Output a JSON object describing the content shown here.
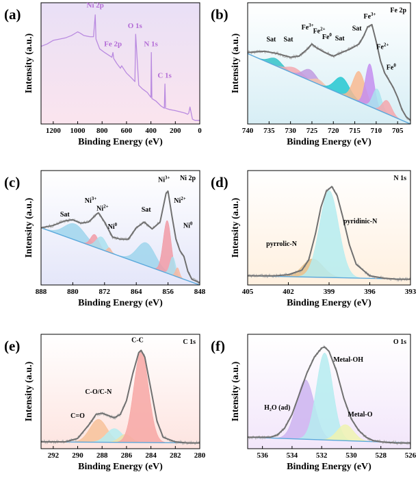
{
  "chart_data": [
    {
      "id": "a",
      "label": "(a)",
      "type": "line",
      "title": "",
      "xlabel": "Binding Energy (eV)",
      "ylabel": "Intensity (a.u.)",
      "xlim": [
        1300,
        0
      ],
      "xticks": [
        1200,
        1000,
        800,
        600,
        400,
        200,
        0
      ],
      "ylim": [
        0,
        100
      ],
      "background": {
        "top": "#e9e0f6",
        "bottom": "#fbe4ee"
      },
      "series": [
        {
          "color": "#b98ae0",
          "x": [
            1300,
            1250,
            1200,
            1150,
            1100,
            1050,
            1000,
            980,
            950,
            900,
            870,
            856,
            850,
            820,
            780,
            720,
            711,
            705,
            680,
            650,
            640,
            600,
            560,
            531,
            525,
            500,
            470,
            430,
            400,
            397,
            392,
            360,
            320,
            290,
            285,
            280,
            250,
            200,
            160,
            120,
            100,
            90,
            80,
            60,
            40,
            20,
            0
          ],
          "y": [
            64,
            66,
            69,
            70,
            71,
            73,
            76,
            75,
            73,
            72,
            72,
            90,
            70,
            62,
            59,
            55,
            59,
            54,
            50,
            46,
            48,
            42,
            38,
            35,
            74,
            32,
            29,
            26,
            22,
            59,
            21,
            19,
            15,
            13,
            33,
            13,
            12,
            11,
            10,
            9,
            8,
            9,
            14,
            4,
            3,
            3,
            3
          ]
        }
      ],
      "annotations": [
        {
          "text": "Ni 2p",
          "x": 856,
          "y": 96
        },
        {
          "text": "Fe 2p",
          "x": 711,
          "y": 64
        },
        {
          "text": "O 1s",
          "x": 531,
          "y": 79
        },
        {
          "text": "N 1s",
          "x": 400,
          "y": 64
        },
        {
          "text": "C 1s",
          "x": 288,
          "y": 38
        }
      ]
    },
    {
      "id": "b",
      "label": "(b)",
      "type": "area",
      "title": "Fe 2p",
      "xlabel": "Binding Energy (eV)",
      "ylabel": "Intensity (a.u.)",
      "xlim": [
        740,
        702
      ],
      "xticks": [
        740,
        735,
        730,
        725,
        720,
        715,
        710,
        705
      ],
      "ylim": [
        0,
        100
      ],
      "background": {
        "top": "#ffffff",
        "bottom": "#d7eef5"
      },
      "baseline": {
        "color": "#5aa8dc",
        "x": [
          740,
          702
        ],
        "y": [
          58,
          0
        ]
      },
      "envelope": {
        "color": "#707070",
        "x": [
          740,
          736,
          733,
          730,
          728,
          726,
          725,
          724,
          722,
          720,
          718,
          716,
          714,
          713,
          712,
          711,
          710,
          709,
          708,
          707,
          706,
          705,
          704,
          703,
          702
        ],
        "y": [
          59,
          60,
          58,
          55,
          56,
          62,
          66,
          63,
          59,
          56,
          59,
          62,
          66,
          72,
          80,
          82,
          68,
          52,
          42,
          36,
          30,
          22,
          12,
          6,
          3
        ]
      },
      "peaks": [
        {
          "center": 733.5,
          "height": 6,
          "width": 1.5,
          "color": "#35c3c8"
        },
        {
          "center": 729,
          "height": 5,
          "width": 1.8,
          "color": "#f3a9b1"
        },
        {
          "center": 725.5,
          "height": 9,
          "width": 1.6,
          "color": "#c19be0"
        },
        {
          "center": 723.5,
          "height": 4,
          "width": 1.2,
          "color": "#f4c6ad"
        },
        {
          "center": 718,
          "height": 14,
          "width": 1.7,
          "color": "#24c7d1"
        },
        {
          "center": 714,
          "height": 25,
          "width": 1.4,
          "color": "#f9b990"
        },
        {
          "center": 711.5,
          "height": 35,
          "width": 1.0,
          "color": "#c48ef0"
        },
        {
          "center": 709.8,
          "height": 17,
          "width": 1.0,
          "color": "#a9e3ef"
        },
        {
          "center": 707.5,
          "height": 11,
          "width": 1.1,
          "color": "#f4a7ad"
        }
      ],
      "annotations": [
        {
          "text": "Sat",
          "x": 734.5,
          "y": 68,
          "sup": ""
        },
        {
          "text": "Sat",
          "x": 730.5,
          "y": 68,
          "sup": ""
        },
        {
          "text": "Fe",
          "x": 726,
          "y": 78,
          "sup": "3+"
        },
        {
          "text": "Fe",
          "x": 723.3,
          "y": 75,
          "sup": "2+"
        },
        {
          "text": "Fe",
          "x": 721.5,
          "y": 70,
          "sup": "0"
        },
        {
          "text": "Sat",
          "x": 718.5,
          "y": 69,
          "sup": ""
        },
        {
          "text": "Sat",
          "x": 714.5,
          "y": 77,
          "sup": ""
        },
        {
          "text": "Fe",
          "x": 711.5,
          "y": 87,
          "sup": "3+"
        },
        {
          "text": "Fe",
          "x": 708.5,
          "y": 62,
          "sup": "2+"
        },
        {
          "text": "Fe",
          "x": 706.5,
          "y": 45,
          "sup": "0"
        }
      ]
    },
    {
      "id": "c",
      "label": "(c)",
      "type": "area",
      "title": "Ni 2p",
      "xlabel": "Binding Energy (eV)",
      "ylabel": "Intensity (a.u.)",
      "xlim": [
        888,
        848
      ],
      "xticks": [
        888,
        880,
        872,
        864,
        856,
        848
      ],
      "ylim": [
        0,
        100
      ],
      "background": {
        "top": "#ffffff",
        "bottom": "#e4e6f9"
      },
      "baseline": {
        "color": "#5aa8dc",
        "x": [
          888,
          848
        ],
        "y": [
          50,
          0
        ]
      },
      "envelope": {
        "color": "#707070",
        "x": [
          888,
          885,
          882,
          880,
          878,
          876,
          874,
          873.5,
          872,
          870,
          868,
          866,
          864,
          862,
          860,
          858,
          856.5,
          856,
          855,
          854,
          853,
          852,
          851,
          850,
          848
        ],
        "y": [
          50,
          52,
          56,
          57,
          54,
          55,
          62,
          63,
          55,
          42,
          40,
          40,
          50,
          55,
          49,
          55,
          80,
          82,
          60,
          40,
          30,
          25,
          12,
          5,
          2
        ]
      },
      "peaks": [
        {
          "center": 879.5,
          "height": 14,
          "width": 2.6,
          "color": "#9fd5ec"
        },
        {
          "center": 874.5,
          "height": 11,
          "width": 1.0,
          "color": "#f19ba6"
        },
        {
          "center": 872.8,
          "height": 11,
          "width": 1.3,
          "color": "#a9e0ee"
        },
        {
          "center": 870.8,
          "height": 4,
          "width": 0.5,
          "color": "#f8b9a0"
        },
        {
          "center": 861.5,
          "height": 20,
          "width": 2.3,
          "color": "#9fd5ec"
        },
        {
          "center": 856.2,
          "height": 46,
          "width": 1.0,
          "color": "#f19ba6"
        },
        {
          "center": 854.8,
          "height": 16,
          "width": 0.7,
          "color": "#a9e0ee"
        },
        {
          "center": 853.6,
          "height": 8,
          "width": 0.5,
          "color": "#f8b9a0"
        }
      ],
      "annotations": [
        {
          "text": "Sat",
          "x": 882,
          "y": 60,
          "sup": ""
        },
        {
          "text": "Ni",
          "x": 875.5,
          "y": 72,
          "sup": "3+"
        },
        {
          "text": "Ni",
          "x": 872.5,
          "y": 65,
          "sup": "2+"
        },
        {
          "text": "Ni",
          "x": 870,
          "y": 49,
          "sup": "0"
        },
        {
          "text": "Sat",
          "x": 861.5,
          "y": 64,
          "sup": ""
        },
        {
          "text": "Ni",
          "x": 857,
          "y": 90,
          "sup": "3+"
        },
        {
          "text": "Ni",
          "x": 853,
          "y": 72,
          "sup": "2+"
        },
        {
          "text": "Ni",
          "x": 851,
          "y": 50,
          "sup": "0"
        }
      ]
    },
    {
      "id": "d",
      "label": "(d)",
      "type": "area",
      "title": "N 1s",
      "xlabel": "Binding Energy (eV)",
      "ylabel": "Intensity (a.u.)",
      "xlim": [
        405,
        393
      ],
      "xticks": [
        405,
        402,
        399,
        396,
        393
      ],
      "ylim": [
        0,
        100
      ],
      "background": {
        "top": "#ffffff",
        "bottom": "#fff0df"
      },
      "baseline": {
        "color": "#5aa8dc",
        "x": [
          405,
          393
        ],
        "y": [
          8,
          5
        ]
      },
      "envelope": {
        "color": "#707070",
        "x": [
          405,
          403,
          402,
          401,
          400.5,
          400,
          399.6,
          399.2,
          398.8,
          398.4,
          398,
          397.5,
          397,
          396,
          395,
          394,
          393
        ],
        "y": [
          8,
          8,
          9,
          13,
          22,
          45,
          68,
          82,
          86,
          78,
          60,
          35,
          18,
          8,
          6,
          5,
          5
        ]
      },
      "peaks": [
        {
          "center": 400.2,
          "height": 16,
          "width": 0.75,
          "color": "#e3be8a"
        },
        {
          "center": 399.0,
          "height": 76,
          "width": 0.7,
          "color": "#b5ecf0"
        }
      ],
      "annotations": [
        {
          "text": "pyrrolic-N",
          "x": 402.5,
          "y": 34,
          "sup": ""
        },
        {
          "text": "pyridinic-N",
          "x": 396.7,
          "y": 54,
          "sup": ""
        }
      ]
    },
    {
      "id": "e",
      "label": "(e)",
      "type": "area",
      "title": "C 1s",
      "xlabel": "Binding Energy (eV)",
      "ylabel": "Intensity (a.u.)",
      "xlim": [
        293,
        280
      ],
      "xticks": [
        292,
        290,
        288,
        286,
        284,
        282,
        280
      ],
      "ylim": [
        0,
        100
      ],
      "background": {
        "top": "#ffffff",
        "bottom": "#fde4e0"
      },
      "baseline": {
        "color": "#5aa8dc",
        "x": [
          293,
          280
        ],
        "y": [
          6,
          5
        ]
      },
      "envelope": {
        "color": "#707070",
        "x": [
          293,
          291,
          290,
          289,
          288.5,
          288,
          287.5,
          287,
          286.5,
          286,
          285.5,
          285,
          284.8,
          284.5,
          284,
          283.5,
          283,
          282,
          281,
          280
        ],
        "y": [
          6,
          6,
          9,
          22,
          30,
          31,
          29,
          27,
          30,
          42,
          65,
          84,
          86,
          80,
          52,
          24,
          10,
          6,
          5,
          5
        ]
      },
      "peaks": [
        {
          "center": 288.3,
          "height": 20,
          "width": 0.7,
          "color": "#f7c29a"
        },
        {
          "center": 287.0,
          "height": 12,
          "width": 0.65,
          "color": "#b5ecf0"
        },
        {
          "center": 286.1,
          "height": 7,
          "width": 0.5,
          "color": "#f0e0a8"
        },
        {
          "center": 284.8,
          "height": 80,
          "width": 0.6,
          "color": "#f7a7a5"
        }
      ],
      "annotations": [
        {
          "text": "C=O",
          "x": 290,
          "y": 27,
          "sup": ""
        },
        {
          "text": "C-O/C-N",
          "x": 288.3,
          "y": 48,
          "sup": ""
        },
        {
          "text": "C-C",
          "x": 285.1,
          "y": 93,
          "sup": ""
        }
      ]
    },
    {
      "id": "f",
      "label": "(f)",
      "type": "area",
      "title": "O 1s",
      "xlabel": "Binding Energy (eV)",
      "ylabel": "Intensity (a.u.)",
      "xlim": [
        537,
        526
      ],
      "xticks": [
        536,
        534,
        532,
        530,
        528,
        526
      ],
      "ylim": [
        0,
        100
      ],
      "background": {
        "top": "#ffffff",
        "bottom": "#f2e6fa"
      },
      "baseline": {
        "color": "#5aa8dc",
        "x": [
          537,
          526
        ],
        "y": [
          10,
          5
        ]
      },
      "envelope": {
        "color": "#707070",
        "x": [
          537,
          535.5,
          535,
          534.5,
          534,
          533.5,
          533,
          532.5,
          532,
          531.8,
          531.5,
          531,
          530.5,
          530,
          529.5,
          529,
          528.5,
          528,
          527,
          526
        ],
        "y": [
          10,
          10,
          12,
          18,
          30,
          48,
          66,
          80,
          88,
          89,
          85,
          68,
          44,
          26,
          16,
          10,
          7,
          6,
          5,
          5
        ]
      },
      "peaks": [
        {
          "center": 533.1,
          "height": 52,
          "width": 0.6,
          "color": "#ccb4f0"
        },
        {
          "center": 531.8,
          "height": 76,
          "width": 0.55,
          "color": "#b5ecf0"
        },
        {
          "center": 530.4,
          "height": 14,
          "width": 0.55,
          "color": "#eef3b0"
        }
      ],
      "annotations": [
        {
          "text": "H₂O (ad)",
          "x": 535,
          "y": 34,
          "sup": ""
        },
        {
          "text": "Metal-OH",
          "x": 530.2,
          "y": 76,
          "sup": ""
        },
        {
          "text": "Metal-O",
          "x": 529.4,
          "y": 28,
          "sup": ""
        }
      ]
    }
  ]
}
